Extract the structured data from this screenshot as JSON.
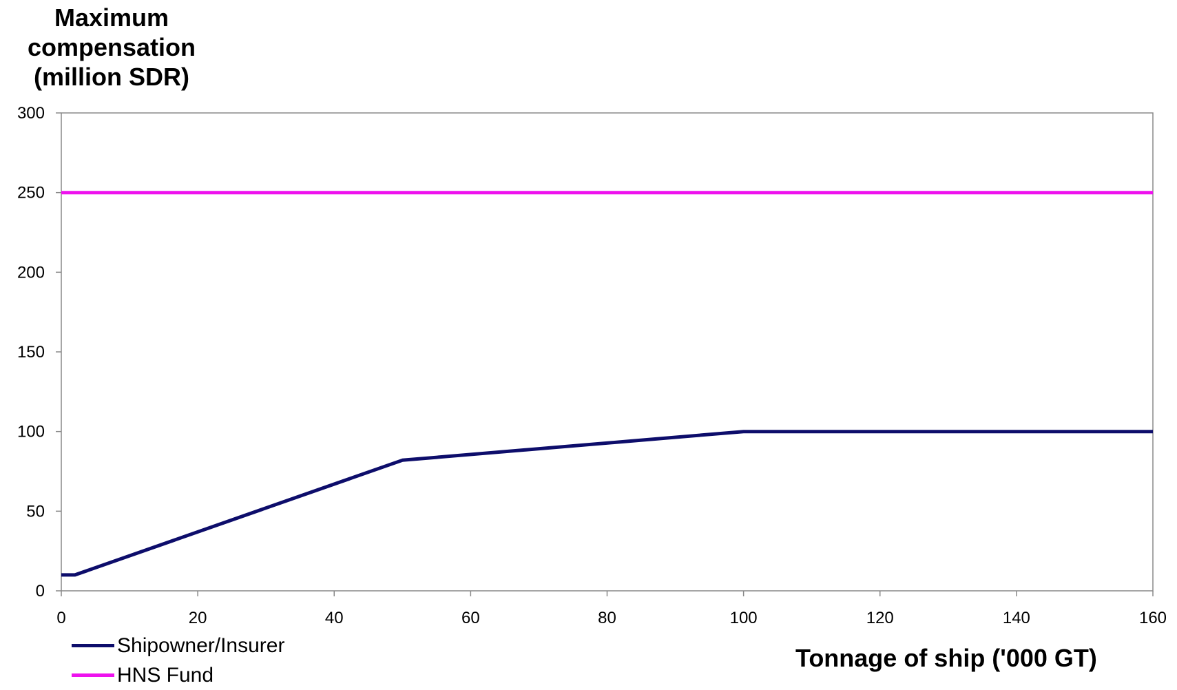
{
  "chart_data": {
    "type": "line",
    "title": "",
    "ylabel_lines": [
      "Maximum",
      "compensation",
      "(million SDR)"
    ],
    "xlabel": "Tonnage of ship ('000 GT)",
    "xlim": [
      0,
      160
    ],
    "ylim": [
      0,
      300
    ],
    "x_ticks": [
      0,
      20,
      40,
      60,
      80,
      100,
      120,
      140,
      160
    ],
    "y_ticks": [
      0,
      50,
      100,
      150,
      200,
      250,
      300
    ],
    "grid": false,
    "legend_position": "bottom-left",
    "series": [
      {
        "name": "Shipowner/Insurer",
        "color": "#0d0d6b",
        "points": [
          [
            0,
            10
          ],
          [
            2,
            10
          ],
          [
            50,
            82
          ],
          [
            100,
            100
          ],
          [
            160,
            100
          ]
        ]
      },
      {
        "name": "HNS Fund",
        "color": "#ee11ee",
        "points": [
          [
            0,
            250
          ],
          [
            160,
            250
          ]
        ]
      }
    ]
  }
}
